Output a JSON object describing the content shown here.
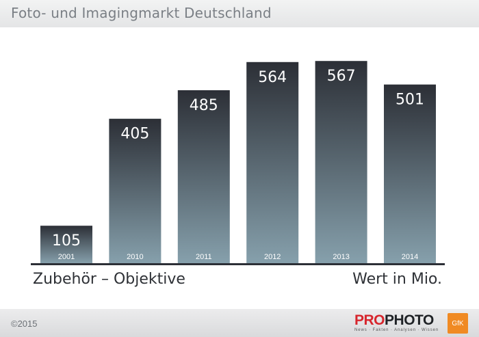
{
  "header": {
    "title": "Foto- und Imagingmarkt Deutschland"
  },
  "chart_data": {
    "type": "bar",
    "categories": [
      "2001",
      "2010",
      "2011",
      "2012",
      "2013",
      "2014"
    ],
    "values": [
      105,
      405,
      485,
      564,
      567,
      501
    ],
    "ylim": [
      0,
      600
    ],
    "grid": false,
    "colors": {
      "bar_top": "#2c2f36",
      "bar_bottom": "#86a0ac",
      "axis": "#2c2f36"
    }
  },
  "labels": {
    "left": "Zubehör – Objektive",
    "right": "Wert in Mio."
  },
  "footer": {
    "copyright": "©2015",
    "logo_part1": "PRO",
    "logo_part2": "PHOTO",
    "logo_tagline": "News · Fakten · Analysen · Wissen",
    "badge": "GfK"
  }
}
